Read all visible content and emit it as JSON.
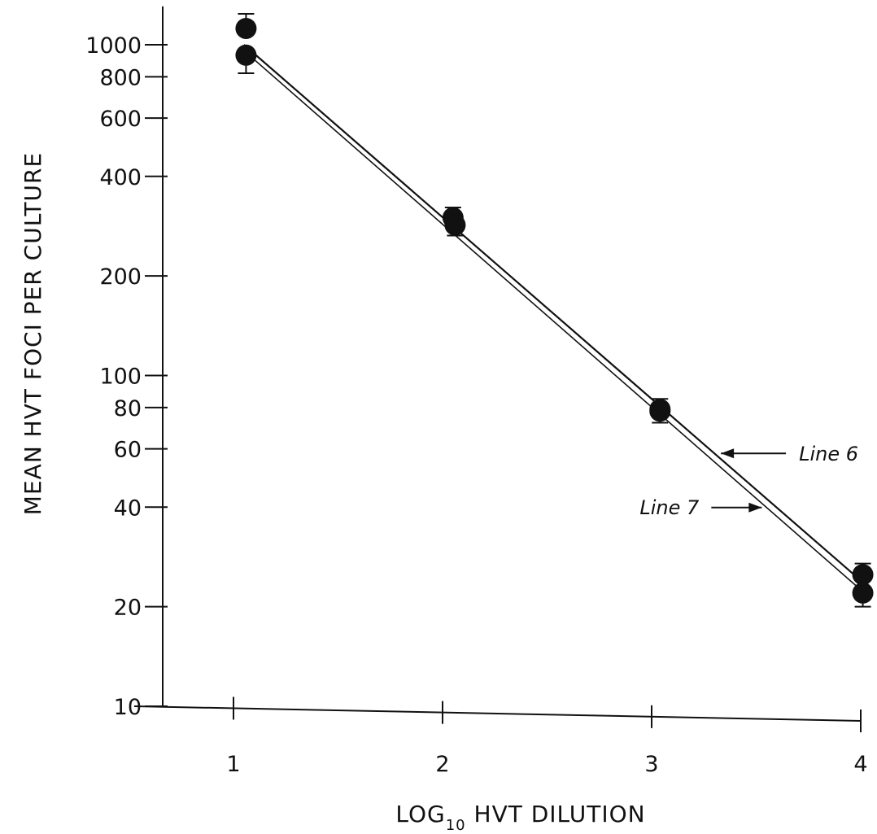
{
  "chart_data": {
    "type": "line",
    "xlabel": {
      "prefix": "LOG",
      "subscript": "10",
      "suffix": " HVT DILUTION"
    },
    "ylabel": "MEAN HVT FOCI PER CULTURE",
    "x_scale": "linear",
    "y_scale": "log",
    "xlim": [
      0.65,
      4
    ],
    "ylim": [
      10,
      1200
    ],
    "x_ticks": [
      1,
      2,
      3,
      4
    ],
    "x_tick_labels": [
      "1",
      "2",
      "3",
      "4"
    ],
    "y_ticks": [
      10,
      20,
      40,
      60,
      80,
      100,
      200,
      400,
      600,
      800,
      1000
    ],
    "y_tick_labels": [
      "10",
      "20",
      "40",
      "60",
      "80",
      "100",
      "200",
      "400",
      "600",
      "800",
      "1000"
    ],
    "grid": false,
    "series": [
      {
        "name": "Line 6",
        "line": {
          "x": [
            1.05,
            4.0
          ],
          "y": [
            1000,
            24
          ]
        },
        "points": [
          {
            "x": 1.06,
            "y": 1120,
            "err": 120
          },
          {
            "x": 2.05,
            "y": 300,
            "err": 22
          },
          {
            "x": 3.04,
            "y": 79,
            "err": 6
          },
          {
            "x": 4.01,
            "y": 25,
            "err": 2
          }
        ]
      },
      {
        "name": "Line 7",
        "line": {
          "x": [
            1.05,
            4.0
          ],
          "y": [
            960,
            22.5
          ]
        },
        "points": [
          {
            "x": 1.06,
            "y": 930,
            "err": 110
          },
          {
            "x": 2.06,
            "y": 285,
            "err": 20
          },
          {
            "x": 3.04,
            "y": 78,
            "err": 6
          },
          {
            "x": 4.01,
            "y": 22,
            "err": 2
          }
        ]
      }
    ],
    "annotations": [
      {
        "text": "Line 6",
        "target": "Line 6",
        "arrow": "left",
        "at_x": 3.3
      },
      {
        "text": "Line 7",
        "target": "Line 7",
        "arrow": "right",
        "at_x": 3.55
      }
    ]
  }
}
